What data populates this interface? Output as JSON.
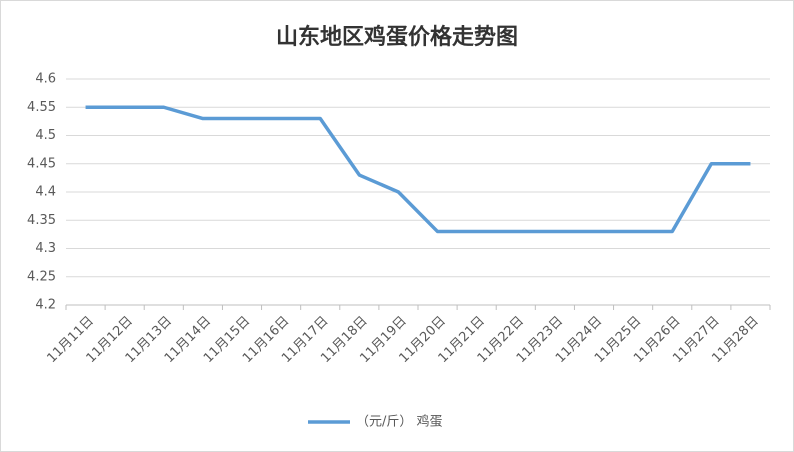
{
  "chart_data": {
    "type": "line",
    "title": "山东地区鸡蛋价格走势图",
    "categories": [
      "11月11日",
      "11月12日",
      "11月13日",
      "11月14日",
      "11月15日",
      "11月16日",
      "11月17日",
      "11月18日",
      "11月19日",
      "11月20日",
      "11月21日",
      "11月22日",
      "11月23日",
      "11月24日",
      "11月25日",
      "11月26日",
      "11月27日",
      "11月28日"
    ],
    "series": [
      {
        "name": "（元/斤） 鸡蛋",
        "color": "#5b9bd5",
        "values": [
          4.55,
          4.55,
          4.55,
          4.53,
          4.53,
          4.53,
          4.53,
          4.43,
          4.4,
          4.33,
          4.33,
          4.33,
          4.33,
          4.33,
          4.33,
          4.33,
          4.45,
          4.45
        ]
      }
    ],
    "ylim": [
      4.2,
      4.6
    ],
    "yticks": [
      4.2,
      4.25,
      4.3,
      4.35,
      4.4,
      4.45,
      4.5,
      4.55,
      4.6
    ],
    "grid": true,
    "legend": "bottom"
  }
}
